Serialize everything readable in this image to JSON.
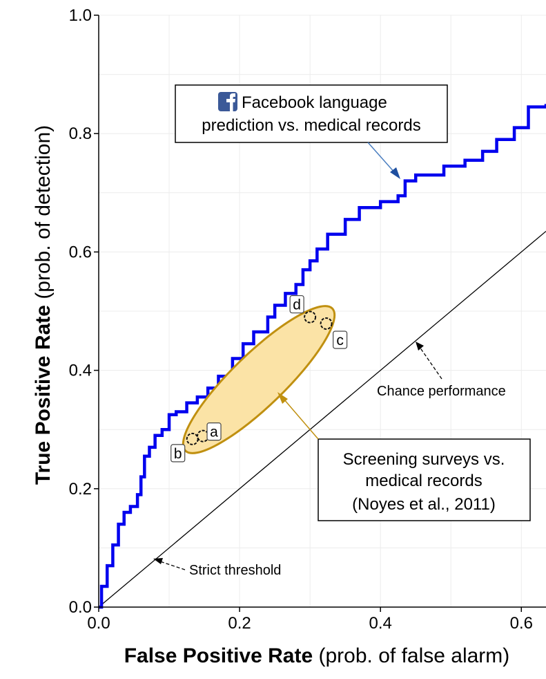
{
  "chart_data": {
    "type": "line",
    "xlabel_bold": "False Positive Rate",
    "xlabel_rest": " (prob. of false alarm)",
    "ylabel_bold": "True Positive Rate",
    "ylabel_rest": " (prob. of detection)",
    "xlim": [
      0,
      0.635
    ],
    "ylim": [
      0,
      1.0
    ],
    "x_ticks": [
      {
        "value": 0.0,
        "label": "0.0"
      },
      {
        "value": 0.2,
        "label": "0.2"
      },
      {
        "value": 0.4,
        "label": "0.4"
      },
      {
        "value": 0.6,
        "label": "0.6"
      }
    ],
    "y_ticks": [
      {
        "value": 0.0,
        "label": "0.0"
      },
      {
        "value": 0.2,
        "label": "0.2"
      },
      {
        "value": 0.4,
        "label": "0.4"
      },
      {
        "value": 0.6,
        "label": "0.6"
      },
      {
        "value": 0.8,
        "label": "0.8"
      },
      {
        "value": 1.0,
        "label": "1.0"
      }
    ],
    "grid": true,
    "series": [
      {
        "name": "Facebook language prediction vs. medical records",
        "color": "#0000ee",
        "step": true,
        "x": [
          0.0,
          0.004,
          0.012,
          0.02,
          0.028,
          0.036,
          0.045,
          0.055,
          0.06,
          0.065,
          0.072,
          0.08,
          0.09,
          0.1,
          0.11,
          0.125,
          0.14,
          0.155,
          0.17,
          0.19,
          0.205,
          0.22,
          0.24,
          0.25,
          0.265,
          0.28,
          0.29,
          0.3,
          0.31,
          0.325,
          0.35,
          0.37,
          0.4,
          0.425,
          0.435,
          0.45,
          0.49,
          0.52,
          0.545,
          0.565,
          0.59,
          0.61,
          0.635
        ],
        "y": [
          0.0,
          0.035,
          0.07,
          0.105,
          0.14,
          0.16,
          0.17,
          0.19,
          0.22,
          0.255,
          0.27,
          0.29,
          0.3,
          0.325,
          0.33,
          0.345,
          0.355,
          0.37,
          0.39,
          0.42,
          0.445,
          0.465,
          0.49,
          0.51,
          0.53,
          0.545,
          0.57,
          0.585,
          0.605,
          0.63,
          0.655,
          0.675,
          0.685,
          0.695,
          0.72,
          0.73,
          0.745,
          0.755,
          0.77,
          0.79,
          0.81,
          0.845,
          0.85
        ]
      },
      {
        "name": "Chance performance",
        "color": "#000000",
        "x": [
          0.0,
          0.635
        ],
        "y": [
          0.0,
          0.635
        ]
      }
    ],
    "survey_points": [
      {
        "label": "a",
        "x": 0.148,
        "y": 0.289
      },
      {
        "label": "b",
        "x": 0.133,
        "y": 0.284
      },
      {
        "label": "c",
        "x": 0.323,
        "y": 0.479
      },
      {
        "label": "d",
        "x": 0.3,
        "y": 0.49
      }
    ],
    "annotations": {
      "facebook_line1": "Facebook language",
      "facebook_line2": "prediction vs. medical records",
      "screening_line1": "Screening surveys vs.",
      "screening_line2": "medical records",
      "screening_line3": "(Noyes et al., 2011)",
      "chance": "Chance performance",
      "strict": "Strict threshold"
    },
    "colors": {
      "facebook_icon": "#3b5998",
      "ellipse_fill": "#fbe3a6",
      "ellipse_stroke": "#c09010",
      "screening_arrow": "#c09010",
      "facebook_arrow": "#4a7ec0",
      "grid": "#ececec"
    }
  }
}
